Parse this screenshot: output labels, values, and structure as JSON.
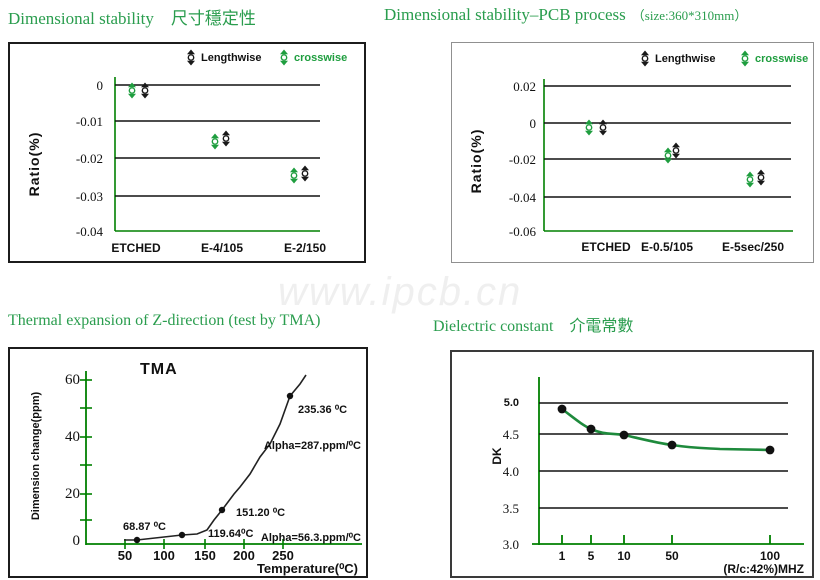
{
  "titles": {
    "top_left": "Dimensional stability　尺寸穩定性",
    "top_right_main": "Dimensional stability–PCB process",
    "top_right_size": "（size:360*310mm）",
    "bottom_left": "Thermal expansion of Z-direction (test by TMA)",
    "bottom_right": "Dielectric constant　介電常數"
  },
  "watermark": "www.ipcb.cn",
  "legend": {
    "lengthwise": "Lengthwise",
    "crosswise": "crosswise"
  },
  "colors": {
    "title_green": "#2a9d4e",
    "axis_green": "#008000",
    "crosswise_green": "#1f9e3f",
    "lengthwise_black": "#1a1a1a",
    "gridline_black": "#111111",
    "dk_line_green": "#1e8a3c",
    "watermark_gray": "#efefef"
  },
  "chart_data": [
    {
      "id": "dimensional-stability",
      "type": "scatter",
      "title": "Dimensional stability 尺寸穩定性",
      "ylabel": "Ratio(%)",
      "yticks": [
        "0",
        "-0.01",
        "-0.02",
        "-0.03",
        "-0.04"
      ],
      "ylim": [
        -0.04,
        0.002
      ],
      "categories": [
        "ETCHED",
        "E-4/105",
        "E-2/150"
      ],
      "series": [
        {
          "name": "Lengthwise",
          "color": "#1a1a1a",
          "values": [
            -0.002,
            -0.014,
            -0.024
          ]
        },
        {
          "name": "crosswise",
          "color": "#1f9e3f",
          "values": [
            -0.003,
            -0.015,
            -0.025
          ]
        }
      ],
      "grid": true,
      "legend_position": "top-right"
    },
    {
      "id": "dimensional-stability-pcb-process",
      "type": "scatter",
      "title": "Dimensional stability–PCB process (size:360*310mm)",
      "ylabel": "Ratio(%)",
      "yticks": [
        "0.02",
        "0",
        "-0.02",
        "-0.04",
        "-0.06"
      ],
      "ylim": [
        -0.06,
        0.02
      ],
      "categories": [
        "ETCHED",
        "E-0.5/105",
        "E-5sec/250"
      ],
      "series": [
        {
          "name": "Lengthwise",
          "color": "#1a1a1a",
          "values": [
            -0.003,
            -0.016,
            -0.03
          ]
        },
        {
          "name": "crosswise",
          "color": "#1f9e3f",
          "values": [
            -0.004,
            -0.019,
            -0.032
          ]
        }
      ],
      "grid": true,
      "legend_position": "top-right"
    },
    {
      "id": "tma-thermal-expansion",
      "type": "line",
      "title": "TMA",
      "xlabel": "Temperature(⁰C)",
      "ylabel": "Dimension change(ppm)",
      "xticks": [
        "50",
        "100",
        "150",
        "200",
        "250"
      ],
      "yticks": [
        "0",
        "20",
        "40",
        "60"
      ],
      "xlim": [
        0,
        280
      ],
      "ylim": [
        0,
        62
      ],
      "x": [
        50,
        70,
        100,
        120,
        140,
        150,
        160,
        170,
        185,
        200,
        215,
        230,
        245,
        255,
        262
      ],
      "values": [
        2,
        2,
        3,
        4,
        5,
        7,
        10,
        14,
        20,
        28,
        37,
        45,
        54,
        59,
        62
      ],
      "marked_points": [
        {
          "label": "68.87 ⁰C",
          "x": 68.87,
          "y": 2
        },
        {
          "label": "119.64⁰C",
          "x": 119.64,
          "y": 4
        },
        {
          "label": "151.20 ⁰C",
          "x": 151.2,
          "y": 14
        },
        {
          "label": "235.36 ⁰C",
          "x": 235.36,
          "y": 55
        }
      ],
      "ann": {
        "alpha_high": "Alpha=287.ppm/⁰C",
        "alpha_low": "Alpha=56.3.ppm/⁰C"
      },
      "grid": false
    },
    {
      "id": "dielectric-constant",
      "type": "line",
      "title": "Dielectric constant 介電常數",
      "ylabel": "DK",
      "xlabel": "(R/c:42%)MHZ",
      "xticks": [
        "1",
        "5",
        "10",
        "50",
        "100"
      ],
      "yticks": [
        "5.0",
        "4.5",
        "4.0",
        "3.5",
        "3.0"
      ],
      "ylim": [
        3.0,
        5.0
      ],
      "x": [
        1,
        5,
        10,
        50,
        100
      ],
      "values": [
        4.88,
        4.6,
        4.5,
        4.37,
        4.28
      ],
      "grid": true
    }
  ]
}
